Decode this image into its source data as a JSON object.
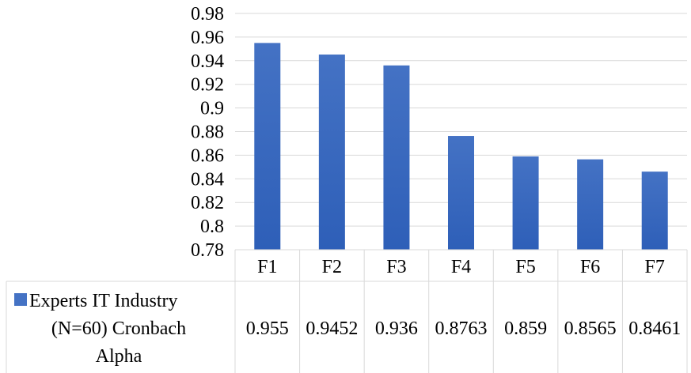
{
  "chart_data": {
    "type": "bar",
    "categories": [
      "F1",
      "F2",
      "F3",
      "F4",
      "F5",
      "F6",
      "F7"
    ],
    "series": [
      {
        "name": "Experts IT Industry (N=60) Cronbach Alpha",
        "values": [
          0.955,
          0.9452,
          0.936,
          0.8763,
          0.859,
          0.8565,
          0.8461
        ],
        "labels": [
          "0.955",
          "0.9452",
          "0.936",
          "0.8763",
          "0.859",
          "0.8565",
          "0.8461"
        ],
        "color": "#4472c4"
      }
    ],
    "ylim": [
      0.78,
      0.98
    ],
    "yticks": [
      "0.78",
      "0.8",
      "0.82",
      "0.84",
      "0.86",
      "0.88",
      "0.9",
      "0.92",
      "0.94",
      "0.96",
      "0.98"
    ],
    "grid": true,
    "data_table": true,
    "colors": {
      "bar_top": "#4472c4",
      "bar_bottom": "#2e5fb8",
      "grid": "#d9d9d9"
    }
  }
}
